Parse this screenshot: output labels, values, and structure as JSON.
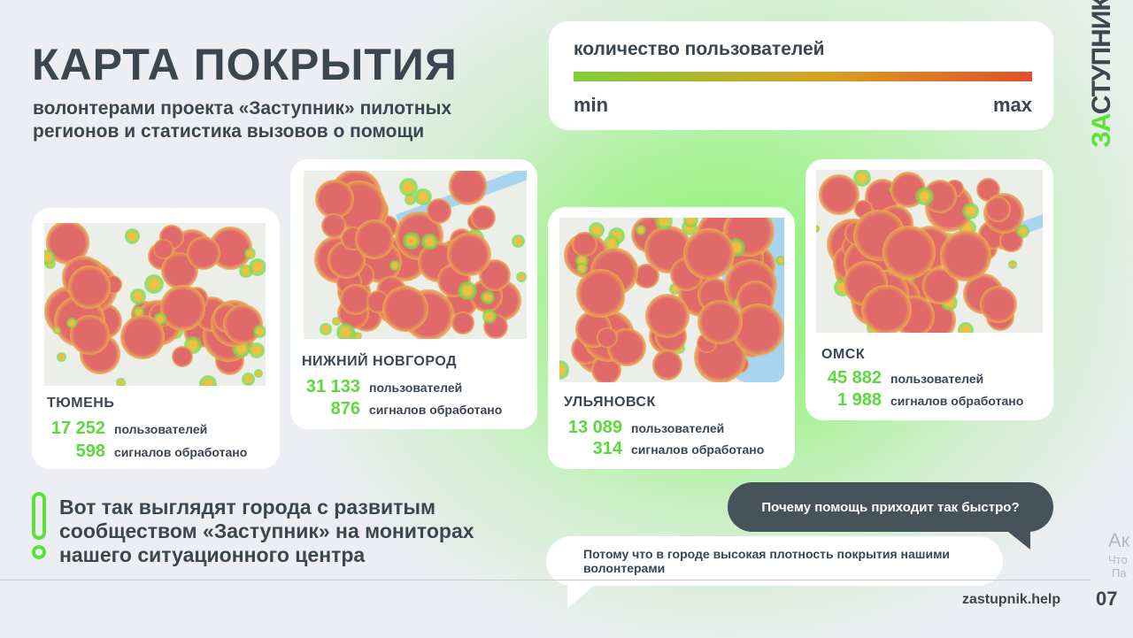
{
  "title": "КАРТА ПОКРЫТИЯ",
  "subtitle": "волонтерами проекта «Заступник» пилотных регионов и статистика вызовов о помощи",
  "legend": {
    "title": "количество пользователей",
    "min": "min",
    "max": "max",
    "gradient": [
      "#7fcf3a",
      "#d9a020",
      "#e0502a"
    ]
  },
  "logo": "ЗАСТУПНИК",
  "accent": "#5ce03a",
  "cities": [
    {
      "name": "ТЮМЕНЬ",
      "users": "17 252",
      "users_label": "пользователей",
      "signals": "598",
      "signals_label": "сигналов обработано"
    },
    {
      "name": "НИЖНИЙ НОВГОРОД",
      "users": "31 133",
      "users_label": "пользователей",
      "signals": "876",
      "signals_label": "сигналов обработано"
    },
    {
      "name": "УЛЬЯНОВСК",
      "users": "13 089",
      "users_label": "пользователей",
      "signals": "314",
      "signals_label": "сигналов обработано"
    },
    {
      "name": "ОМСК",
      "users": "45 882",
      "users_label": "пользователей",
      "signals": "1 988",
      "signals_label": "сигналов обработано"
    }
  ],
  "note": "Вот так выглядят города с развитым сообществом «Заступник» на мониторах нашего ситуационного центра",
  "chat": {
    "question": "Почему помощь приходит так быстро?",
    "answer": "Потому что в городе высокая плотность покрытия нашими волонтерами"
  },
  "footer": {
    "site": "zastupnik.help",
    "page": "07"
  },
  "next_slide_fragments": [
    "Ак",
    "Что",
    "Па"
  ]
}
